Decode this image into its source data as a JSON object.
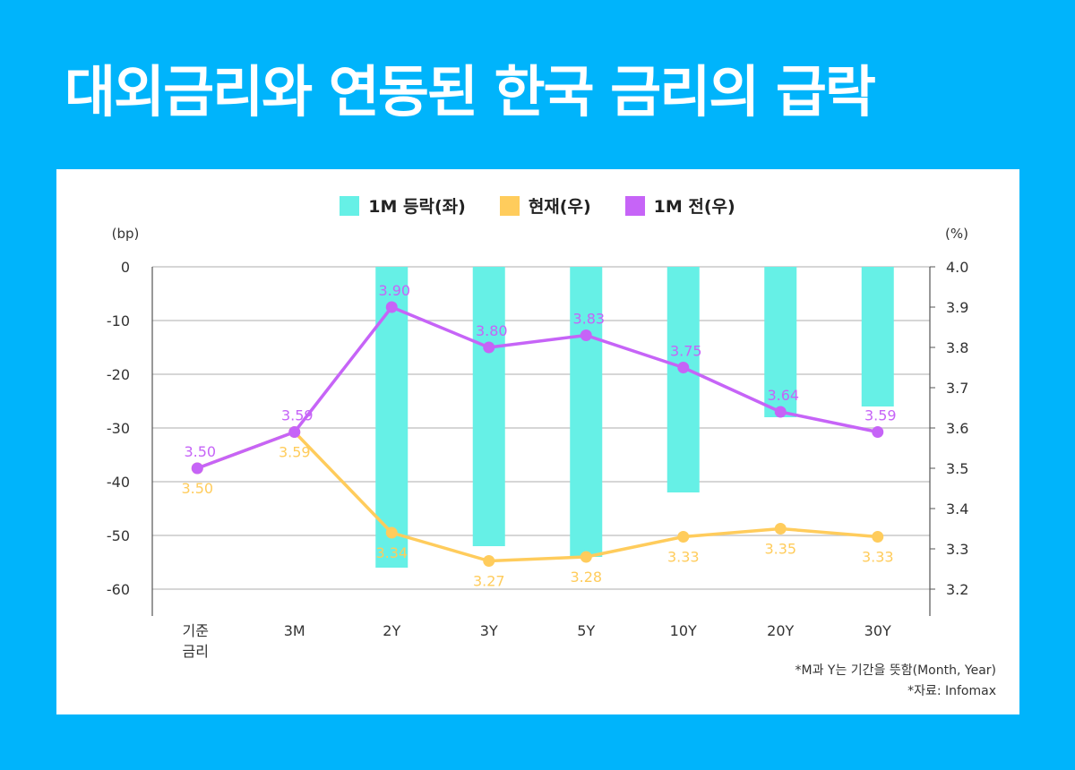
{
  "title": "대외금리와 연동된 한국 금리의 급락",
  "colors": {
    "background": "#00b4fb",
    "bar": "#66f0e6",
    "current": "#ffcc5c",
    "prev": "#c664f7",
    "grid": "#c8c8c8",
    "axis": "#555555",
    "text": "#333333"
  },
  "legend": [
    {
      "label": "1M 등락(좌)",
      "color": "#66f0e6"
    },
    {
      "label": "현재(우)",
      "color": "#ffcc5c"
    },
    {
      "label": "1M 전(우)",
      "color": "#c664f7"
    }
  ],
  "notes": [
    "*M과 Y는 기간을 뜻함(Month, Year)",
    "*자료: Infomax"
  ],
  "chart_data": {
    "type": "bar+line",
    "categories": [
      "기준\n금리",
      "3M",
      "2Y",
      "3Y",
      "5Y",
      "10Y",
      "20Y",
      "30Y"
    ],
    "left_axis": {
      "label": "(bp)",
      "ticks": [
        0,
        -10,
        -20,
        -30,
        -40,
        -50,
        -60
      ],
      "range": [
        -65,
        0
      ]
    },
    "right_axis": {
      "label": "(%)",
      "ticks": [
        4.0,
        3.9,
        3.8,
        3.7,
        3.6,
        3.5,
        3.4,
        3.3,
        3.2
      ],
      "range": [
        3.1333,
        4.0
      ]
    },
    "series": [
      {
        "name": "1M 등락(좌)",
        "type": "bar",
        "axis": "left",
        "values": [
          null,
          null,
          -56,
          -52,
          -54,
          -42,
          -28,
          -26
        ]
      },
      {
        "name": "현재(우)",
        "type": "line",
        "axis": "right",
        "values": [
          3.5,
          3.59,
          3.34,
          3.27,
          3.28,
          3.33,
          3.35,
          3.33
        ],
        "labels": [
          "3.50",
          "3.59",
          "3.34",
          "3.27",
          "3.28",
          "3.33",
          "3.35",
          "3.33"
        ]
      },
      {
        "name": "1M 전(우)",
        "type": "line",
        "axis": "right",
        "values": [
          3.5,
          3.59,
          3.9,
          3.8,
          3.83,
          3.75,
          3.64,
          3.59
        ],
        "labels": [
          "3.50",
          "3.59",
          "3.90",
          "3.80",
          "3.83",
          "3.75",
          "3.64",
          "3.59"
        ]
      }
    ],
    "grid": true,
    "legend_position": "top-center"
  }
}
